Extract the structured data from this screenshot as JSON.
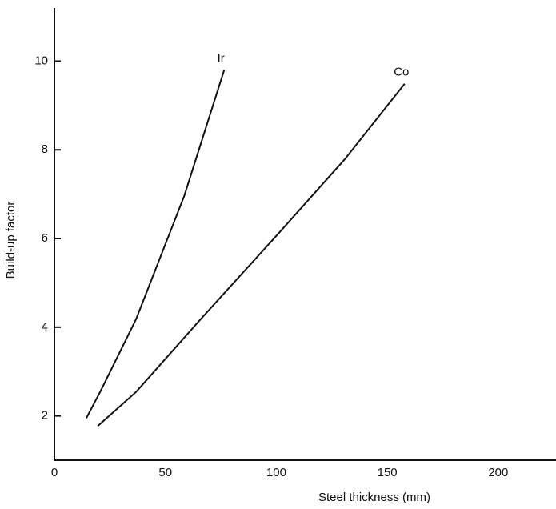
{
  "chart_data": {
    "type": "line",
    "x_label": "Steel thickness (mm)",
    "y_label": "Build-up factor",
    "series": [
      {
        "name": "Ir",
        "color": "#111111",
        "x": [
          14.4,
          20.6,
          36.8,
          58.5,
          76.5
        ],
        "values": [
          1.95,
          2.54,
          4.18,
          6.96,
          9.8
        ]
      },
      {
        "name": "Co",
        "color": "#111111",
        "x": [
          19.5,
          36.8,
          65.7,
          100,
          130.7,
          157.8
        ],
        "values": [
          1.77,
          2.54,
          4.17,
          6.06,
          7.78,
          9.49
        ]
      }
    ],
    "xlim": [
      0,
      226
    ],
    "ylim": [
      1,
      11.2
    ],
    "xticks": [
      0,
      50,
      100,
      150,
      200
    ],
    "yticks": [
      2,
      4,
      6,
      8,
      10
    ],
    "grid": false
  }
}
